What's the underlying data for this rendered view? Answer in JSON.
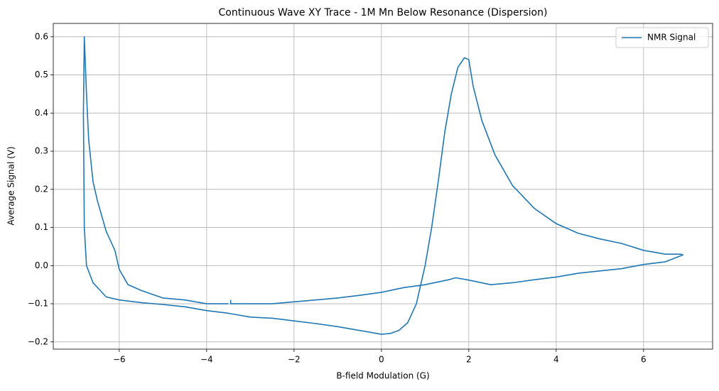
{
  "chart_data": {
    "type": "line",
    "title": "Continuous Wave XY Trace - 1M Mn Below Resonance (Dispersion)",
    "x_label": "B-field Modulation (G)",
    "y_label": "Average Signal (V)",
    "legend_position": "upper right",
    "grid": true,
    "xlim": [
      -7.51,
      7.58
    ],
    "ylim": [
      -0.219,
      0.635
    ],
    "xticks": [
      {
        "value": -6,
        "label": "−6"
      },
      {
        "value": -4,
        "label": "−4"
      },
      {
        "value": -2,
        "label": "−2"
      },
      0,
      2,
      4,
      6
    ],
    "yticks": [
      {
        "value": -0.2,
        "label": "−0.2"
      },
      {
        "value": -0.1,
        "label": "−0.1"
      },
      {
        "value": 0,
        "label": "0.0"
      },
      0.1,
      0.2,
      0.3,
      0.4,
      0.5,
      0.6
    ],
    "series": [
      {
        "name": "NMR Signal",
        "color": "#1f77b4",
        "x": [
          -3.45,
          -3.45,
          -3,
          -2.5,
          -2,
          -1.5,
          -1,
          -0.5,
          0,
          0.5,
          1,
          1.5,
          1.7,
          2,
          2.5,
          3,
          3.5,
          4,
          4.5,
          5,
          5.5,
          6,
          6.5,
          6.9,
          6.85,
          6.5,
          6,
          5.5,
          5,
          4.5,
          4,
          3.5,
          3,
          2.6,
          2.3,
          2.1,
          2.0,
          1.9,
          1.75,
          1.6,
          1.45,
          1.3,
          1.15,
          1.0,
          0.9,
          0.8,
          0.6,
          0.4,
          0.2,
          0,
          -0.5,
          -1,
          -1.5,
          -2,
          -2.5,
          -3,
          -3.5,
          -4,
          -4.5,
          -5,
          -5.5,
          -6,
          -6.3,
          -6.6,
          -6.75,
          -6.8,
          -6.82,
          -6.8,
          -6.75,
          -6.7,
          -6.6,
          -6.5,
          -6.3,
          -6.1,
          -6,
          -5.8,
          -5.5,
          -5,
          -4.5,
          -4,
          -3.5
        ],
        "y": [
          -0.09,
          -0.1,
          -0.1,
          -0.1,
          -0.095,
          -0.09,
          -0.085,
          -0.078,
          -0.07,
          -0.058,
          -0.05,
          -0.038,
          -0.032,
          -0.038,
          -0.05,
          -0.045,
          -0.037,
          -0.03,
          -0.02,
          -0.014,
          -0.008,
          0.003,
          0.01,
          0.028,
          0.03,
          0.03,
          0.04,
          0.058,
          0.07,
          0.085,
          0.11,
          0.15,
          0.21,
          0.29,
          0.38,
          0.47,
          0.54,
          0.545,
          0.52,
          0.45,
          0.35,
          0.22,
          0.1,
          0.0,
          -0.05,
          -0.1,
          -0.15,
          -0.17,
          -0.178,
          -0.18,
          -0.17,
          -0.16,
          -0.152,
          -0.145,
          -0.138,
          -0.135,
          -0.125,
          -0.118,
          -0.108,
          -0.102,
          -0.097,
          -0.09,
          -0.082,
          -0.045,
          0.0,
          0.1,
          0.4,
          0.6,
          0.45,
          0.33,
          0.22,
          0.17,
          0.09,
          0.04,
          -0.01,
          -0.05,
          -0.065,
          -0.085,
          -0.09,
          -0.1,
          -0.1
        ]
      }
    ]
  }
}
